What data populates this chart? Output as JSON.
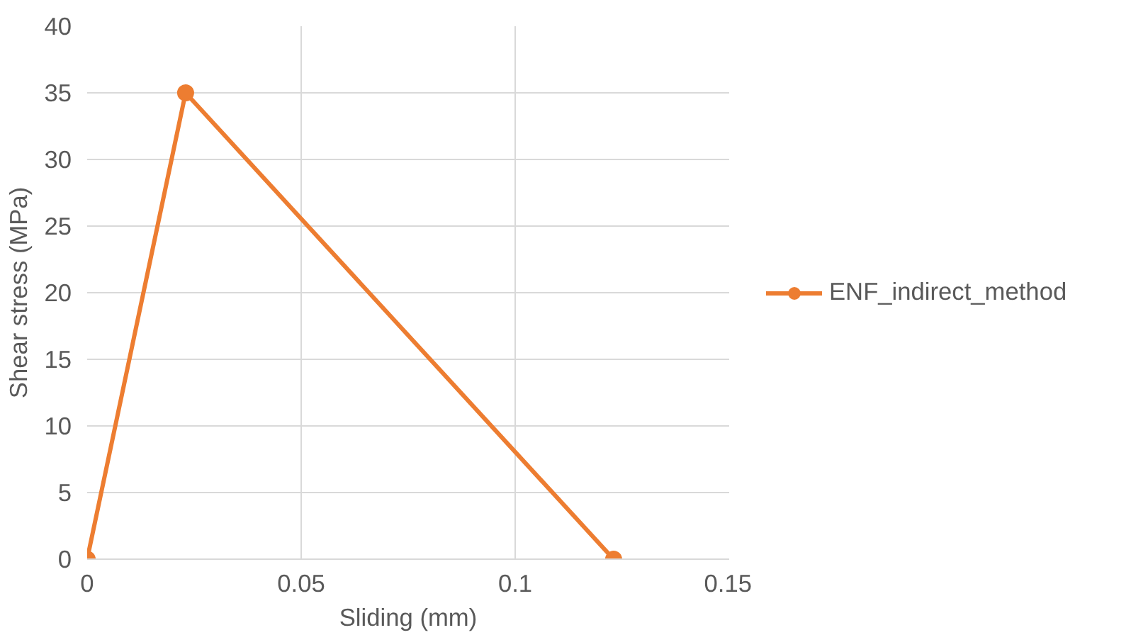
{
  "chart_data": {
    "type": "line",
    "xlabel": "Sliding (mm)",
    "ylabel": "Shear stress (MPa)",
    "x": [
      0,
      0.023,
      0.123
    ],
    "series": [
      {
        "name": "ENF_indirect_method",
        "color": "#ed7d31",
        "values": [
          0,
          35,
          0
        ]
      }
    ],
    "xlim": [
      0,
      0.15
    ],
    "xticks": [
      0,
      0.05,
      0.1,
      0.15
    ],
    "ylim": [
      0,
      40
    ],
    "yticks": [
      0,
      5,
      10,
      15,
      20,
      25,
      30,
      35,
      40
    ],
    "grid": true,
    "legend": "right",
    "marker": "circle",
    "line_style": "solid"
  }
}
